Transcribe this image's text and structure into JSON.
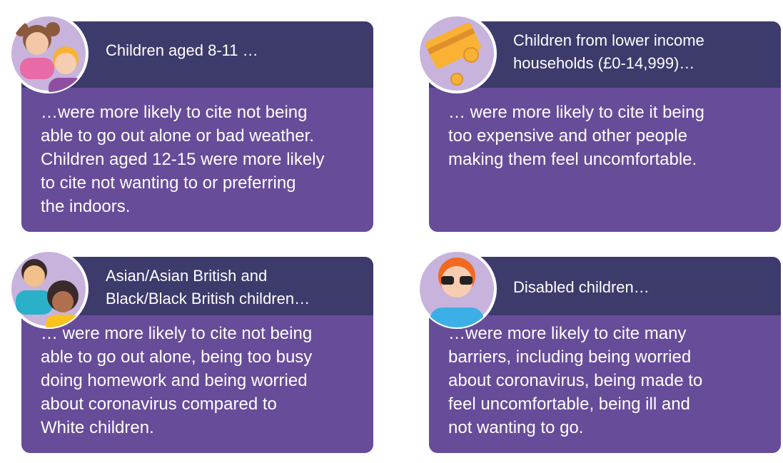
{
  "cards": [
    {
      "header": [
        "Children aged 8-11 …"
      ],
      "body": [
        "…were more likely to cite not being",
        "able to go out alone or bad weather.",
        "Children aged 12-15 were more likely",
        "to cite not wanting to or preferring",
        "the indoors."
      ]
    },
    {
      "header": [
        "Children from lower income",
        "households (£0-14,999)…"
      ],
      "body": [
        "… were more likely to cite it being",
        "too expensive and other people",
        "making them feel uncomfortable."
      ]
    },
    {
      "header": [
        "Asian/Asian British and",
        "Black/Black British children…"
      ],
      "body": [
        "… were more likely to cite not being",
        "able to go out alone, being too busy",
        "doing homework and being worried",
        "about coronavirus compared to",
        "White children."
      ]
    },
    {
      "header": [
        "Disabled children…"
      ],
      "body": [
        "…were more likely to cite many",
        "barriers, including being worried",
        "about coronavirus, being made to",
        "feel uncomfortable, being ill and",
        "not wanting to go."
      ]
    }
  ]
}
